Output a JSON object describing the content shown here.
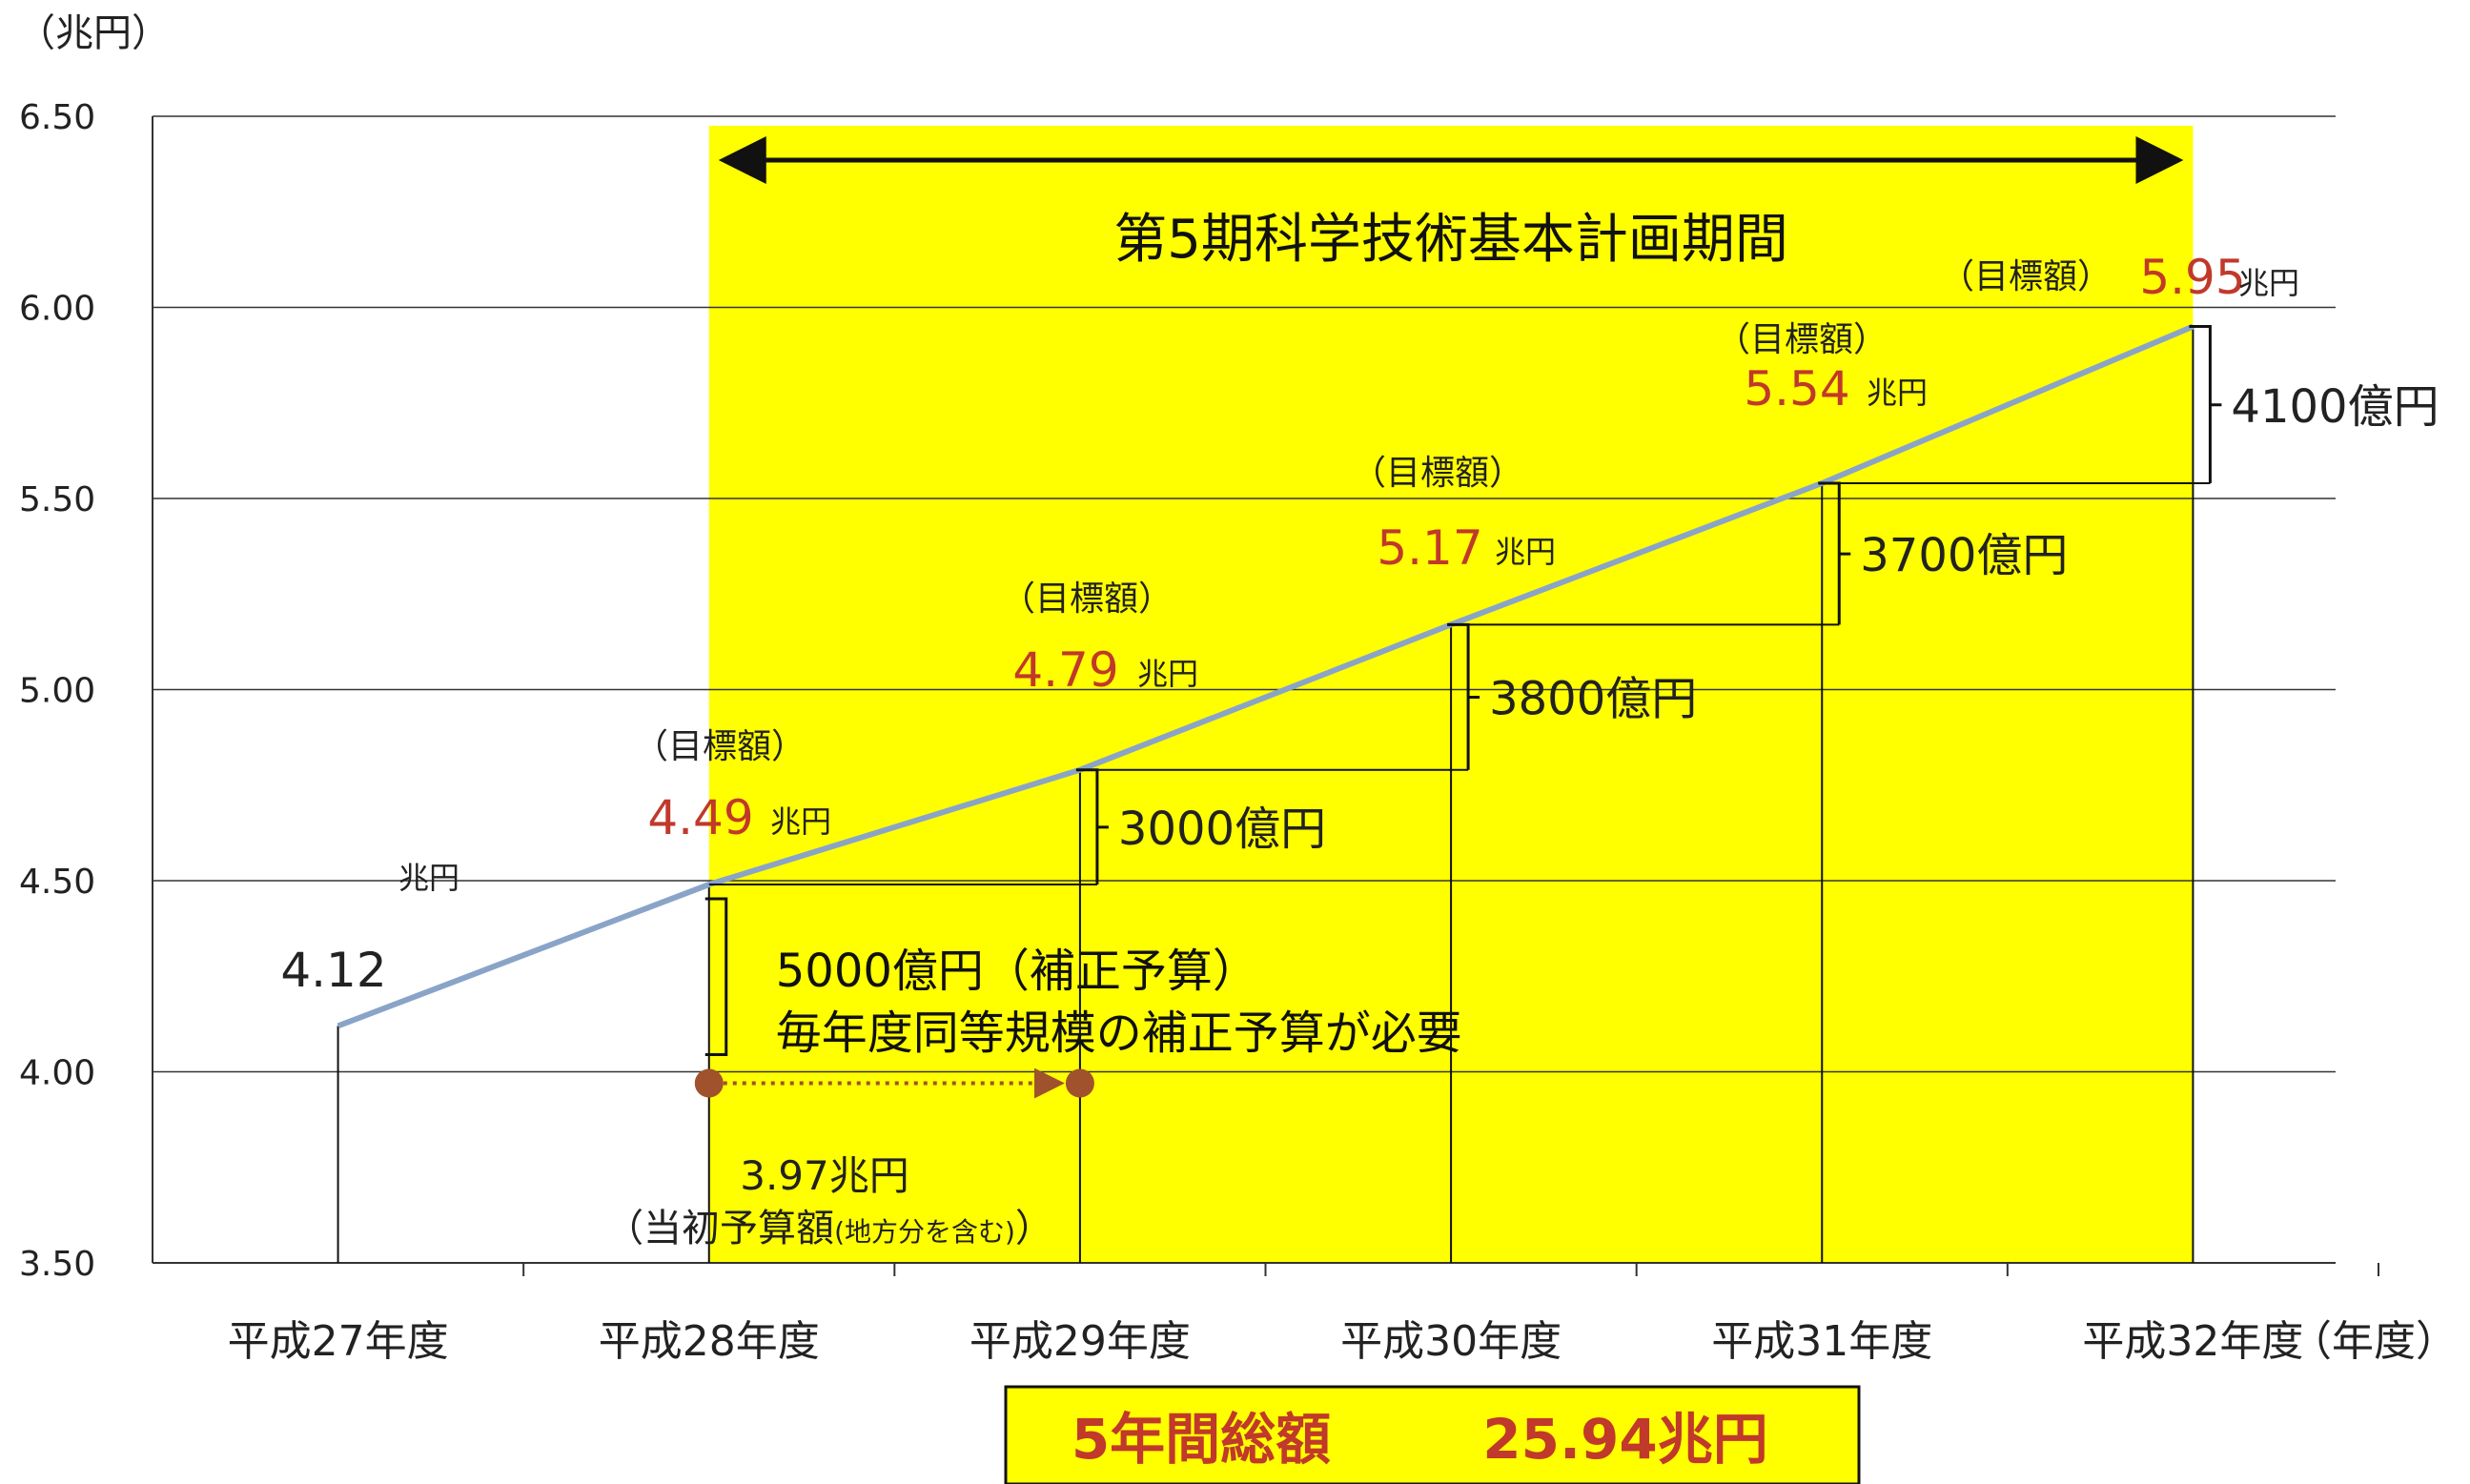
{
  "chart_data": {
    "type": "line",
    "y_unit_label": "（兆円）",
    "x_unit_label": "（年度）",
    "ylim": [
      3.5,
      6.5
    ],
    "yticks": [
      "6.50",
      "6.00",
      "5.50",
      "5.00",
      "4.50",
      "4.00",
      "3.50"
    ],
    "grid": true,
    "categories": [
      "平成27年度",
      "平成28年度",
      "平成29年度",
      "平成30年度",
      "平成31年度",
      "平成32年度"
    ],
    "series": [
      {
        "values": [
          4.12,
          4.49,
          4.79,
          5.17,
          5.54,
          5.95
        ]
      }
    ],
    "highlight_period": {
      "label": "第5期科学技術基本計画期間",
      "from": "平成28年度",
      "to": "平成32年度",
      "color": "#ffff00"
    },
    "data_labels": [
      {
        "category": "平成27年度",
        "value": "4.12",
        "unit": "兆円"
      },
      {
        "category": "平成28年度",
        "prefix": "（目標額）",
        "value": "4.49",
        "unit": "兆円"
      },
      {
        "category": "平成29年度",
        "prefix": "（目標額）",
        "value": "4.79",
        "unit": "兆円"
      },
      {
        "category": "平成30年度",
        "prefix": "（目標額）",
        "value": "5.17",
        "unit": "兆円"
      },
      {
        "category": "平成31年度",
        "prefix": "（目標額）",
        "value": "5.54",
        "unit": "兆円"
      },
      {
        "category": "平成32年度",
        "prefix": "（目標額）",
        "value": "5.95",
        "unit": "兆円"
      }
    ],
    "increments": [
      {
        "from": "平成28年度",
        "to": "平成29年度",
        "label": "3000億円"
      },
      {
        "from": "平成29年度",
        "to": "平成30年度",
        "label": "3800億円"
      },
      {
        "from": "平成30年度",
        "to": "平成31年度",
        "label": "3700億円"
      },
      {
        "from": "平成31年度",
        "to": "平成32年度",
        "label": "4100億円"
      }
    ],
    "supplementary": {
      "line1": "5000億円（補正予算）",
      "line2": "毎年度同等規模の補正予算が必要"
    },
    "initial_budget": {
      "value": 3.97,
      "amount": "3.97兆円",
      "note_main": "（当初予算額",
      "note_small": "(地方分を含む)",
      "note_end": "）"
    },
    "total": {
      "label": "5年間総額",
      "amount": "25.94兆円"
    },
    "colors": {
      "line": "#8aa4c8",
      "highlight": "#ffff00",
      "value_red": "#c0392b",
      "dot": "#a0522d",
      "total_text": "#c0392b"
    }
  }
}
